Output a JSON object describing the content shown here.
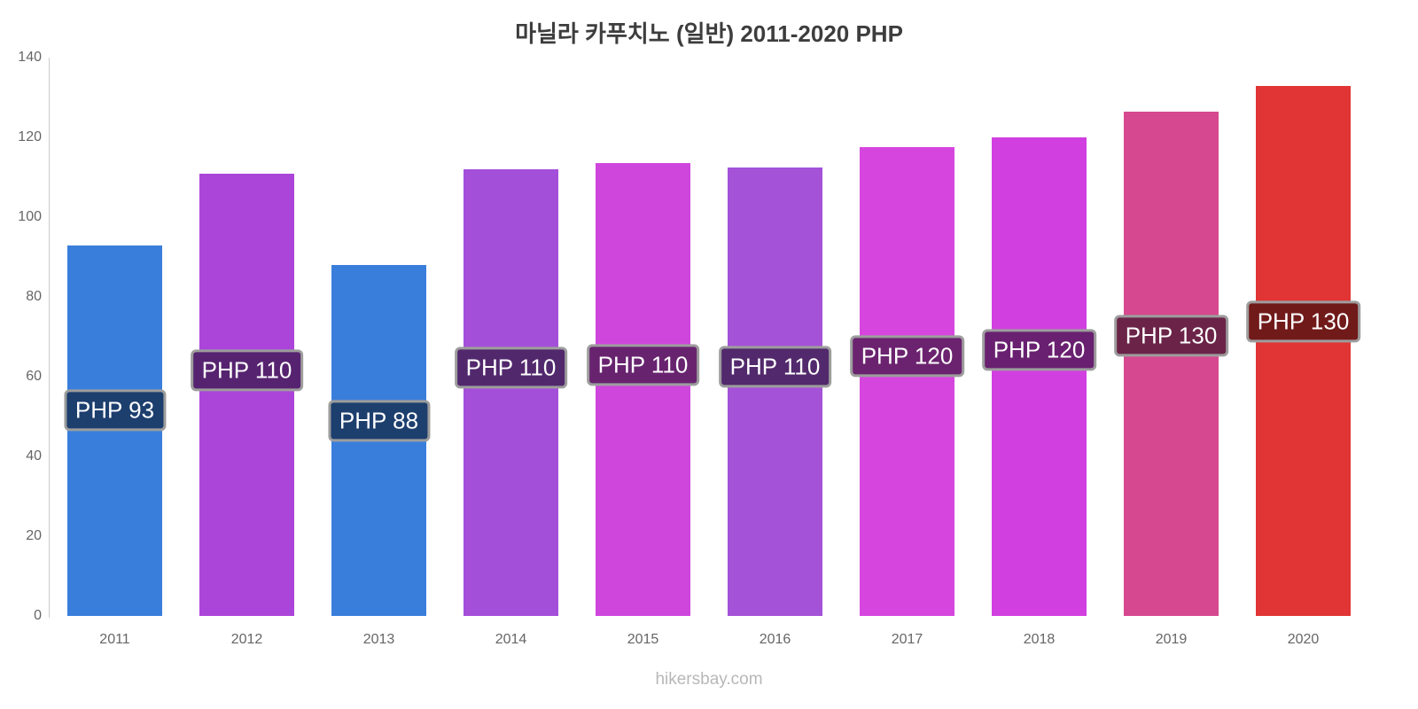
{
  "footer": "hikersbay.com",
  "chart_data": {
    "type": "bar",
    "title": "마닐라 카푸치노 (일반) 2011-2020 PHP",
    "categories": [
      "2011",
      "2012",
      "2013",
      "2014",
      "2015",
      "2016",
      "2017",
      "2018",
      "2019",
      "2020"
    ],
    "values": [
      93,
      111,
      88,
      112,
      113.5,
      112.5,
      117.5,
      120,
      126.5,
      133
    ],
    "bar_labels": [
      "PHP 93",
      "PHP 110",
      "PHP 88",
      "PHP 110",
      "PHP 110",
      "PHP 110",
      "PHP 120",
      "PHP 120",
      "PHP 130",
      "PHP 130"
    ],
    "bar_colors": [
      "#3a7edc",
      "#ab45d9",
      "#3a7edc",
      "#a44fd9",
      "#cf46dd",
      "#a452d8",
      "#d646de",
      "#d23fe0",
      "#d6488f",
      "#e13434"
    ],
    "label_bg_colors": [
      "#1d3f6e",
      "#562370",
      "#1d3f6e",
      "#52286d",
      "#68236f",
      "#52296c",
      "#6b236f",
      "#692070",
      "#6b2448",
      "#711a1a"
    ],
    "xlabel": "",
    "ylabel": "",
    "ylim": [
      0,
      140
    ],
    "yticks": [
      0,
      20,
      40,
      60,
      80,
      100,
      120,
      140
    ],
    "grid": false,
    "legend": false,
    "axis_color": "#cccccc",
    "tick_text_color": "#666666",
    "title_color": "#3d3d3d"
  }
}
